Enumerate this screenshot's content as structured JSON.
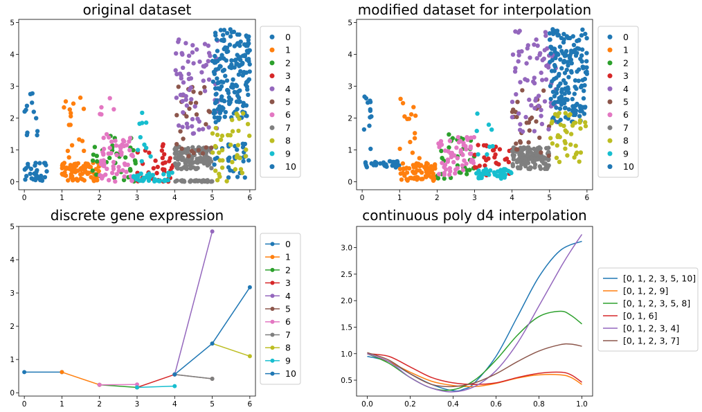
{
  "palette": [
    "#1f77b4",
    "#ff7f0e",
    "#2ca02c",
    "#d62728",
    "#9467bd",
    "#8c564b",
    "#e377c2",
    "#7f7f7f",
    "#bcbd22",
    "#17becf",
    "#1f77b4"
  ],
  "chart_data": [
    {
      "type": "scatter",
      "title": "original dataset",
      "xlabel": "",
      "ylabel": "",
      "xlim": [
        -0.15,
        6.15
      ],
      "ylim": [
        -0.25,
        5.1
      ],
      "xticks": [
        "0",
        "1",
        "2",
        "3",
        "4",
        "5",
        "6"
      ],
      "yticks": [
        "0",
        "1",
        "2",
        "3",
        "4",
        "5"
      ],
      "legend": {
        "placement": "right",
        "entries": [
          "0",
          "1",
          "2",
          "3",
          "4",
          "5",
          "6",
          "7",
          "8",
          "9",
          "10"
        ]
      },
      "clusters": [
        {
          "series": 0,
          "xr": [
            0.0,
            0.6
          ],
          "yr": [
            0.0,
            0.6
          ],
          "n": 32
        },
        {
          "series": 0,
          "xr": [
            0.0,
            0.35
          ],
          "yr": [
            1.0,
            2.8
          ],
          "n": 12
        },
        {
          "series": 1,
          "xr": [
            1.0,
            2.0
          ],
          "yr": [
            0.0,
            0.6
          ],
          "n": 80
        },
        {
          "series": 1,
          "xr": [
            1.0,
            1.6
          ],
          "yr": [
            0.6,
            2.9
          ],
          "n": 16
        },
        {
          "series": 2,
          "xr": [
            1.8,
            3.0
          ],
          "yr": [
            0.0,
            1.5
          ],
          "n": 40
        },
        {
          "series": 6,
          "xr": [
            2.0,
            2.9
          ],
          "yr": [
            0.0,
            1.4
          ],
          "n": 60
        },
        {
          "series": 6,
          "xr": [
            2.0,
            2.4
          ],
          "yr": [
            1.4,
            2.8
          ],
          "n": 6
        },
        {
          "series": 3,
          "xr": [
            3.0,
            4.0
          ],
          "yr": [
            0.0,
            1.2
          ],
          "n": 35
        },
        {
          "series": 9,
          "xr": [
            2.9,
            4.0
          ],
          "yr": [
            0.0,
            0.3
          ],
          "n": 40
        },
        {
          "series": 9,
          "xr": [
            3.0,
            3.5
          ],
          "yr": [
            0.6,
            2.2
          ],
          "n": 10
        },
        {
          "series": 7,
          "xr": [
            4.0,
            5.0
          ],
          "yr": [
            0.4,
            1.1
          ],
          "n": 120
        },
        {
          "series": 7,
          "xr": [
            4.0,
            5.0
          ],
          "yr": [
            0.0,
            0.05
          ],
          "n": 40
        },
        {
          "series": 5,
          "xr": [
            4.0,
            5.0
          ],
          "yr": [
            0.8,
            3.0
          ],
          "n": 30
        },
        {
          "series": 4,
          "xr": [
            4.0,
            5.2
          ],
          "yr": [
            1.5,
            4.5
          ],
          "n": 70
        },
        {
          "series": 10,
          "xr": [
            5.0,
            6.0
          ],
          "yr": [
            1.8,
            4.8
          ],
          "n": 180
        },
        {
          "series": 0,
          "xr": [
            5.0,
            6.0
          ],
          "yr": [
            0.0,
            1.2
          ],
          "n": 30
        },
        {
          "series": 8,
          "xr": [
            5.0,
            6.0
          ],
          "yr": [
            0.0,
            2.2
          ],
          "n": 40
        }
      ]
    },
    {
      "type": "scatter",
      "title": "modified dataset for interpolation",
      "xlabel": "",
      "ylabel": "",
      "xlim": [
        -0.15,
        6.15
      ],
      "ylim": [
        -0.25,
        5.1
      ],
      "xticks": [
        "0",
        "1",
        "2",
        "3",
        "4",
        "5",
        "6"
      ],
      "yticks": [
        "0",
        "1",
        "2",
        "3",
        "4",
        "5"
      ],
      "legend": {
        "placement": "right",
        "entries": [
          "0",
          "1",
          "2",
          "3",
          "4",
          "5",
          "6",
          "7",
          "8",
          "9",
          "10"
        ]
      },
      "clusters": [
        {
          "series": 0,
          "xr": [
            0.0,
            1.0
          ],
          "yr": [
            0.45,
            0.65
          ],
          "n": 30
        },
        {
          "series": 0,
          "xr": [
            0.0,
            0.35
          ],
          "yr": [
            1.0,
            2.8
          ],
          "n": 12
        },
        {
          "series": 1,
          "xr": [
            1.0,
            2.0
          ],
          "yr": [
            0.0,
            0.6
          ],
          "n": 70
        },
        {
          "series": 1,
          "xr": [
            1.0,
            1.6
          ],
          "yr": [
            0.6,
            2.9
          ],
          "n": 14
        },
        {
          "series": 2,
          "xr": [
            2.0,
            3.0
          ],
          "yr": [
            0.1,
            1.5
          ],
          "n": 35
        },
        {
          "series": 6,
          "xr": [
            2.0,
            3.0
          ],
          "yr": [
            0.2,
            1.4
          ],
          "n": 55
        },
        {
          "series": 3,
          "xr": [
            3.0,
            4.0
          ],
          "yr": [
            0.2,
            1.2
          ],
          "n": 30
        },
        {
          "series": 9,
          "xr": [
            3.0,
            4.0
          ],
          "yr": [
            0.1,
            0.4
          ],
          "n": 40
        },
        {
          "series": 9,
          "xr": [
            3.0,
            3.5
          ],
          "yr": [
            0.6,
            2.2
          ],
          "n": 8
        },
        {
          "series": 7,
          "xr": [
            4.0,
            5.0
          ],
          "yr": [
            0.4,
            1.1
          ],
          "n": 120
        },
        {
          "series": 5,
          "xr": [
            4.0,
            5.0
          ],
          "yr": [
            0.8,
            3.0
          ],
          "n": 30
        },
        {
          "series": 4,
          "xr": [
            4.0,
            5.2
          ],
          "yr": [
            1.5,
            4.8
          ],
          "n": 70
        },
        {
          "series": 10,
          "xr": [
            5.0,
            6.0
          ],
          "yr": [
            1.8,
            4.8
          ],
          "n": 180
        },
        {
          "series": 8,
          "xr": [
            5.0,
            6.0
          ],
          "yr": [
            0.6,
            2.2
          ],
          "n": 40
        }
      ]
    },
    {
      "type": "line",
      "title": "discrete gene expression",
      "xlabel": "",
      "ylabel": "",
      "xlim": [
        -0.15,
        6.15
      ],
      "ylim": [
        -0.1,
        5.0
      ],
      "xticks": [
        "0",
        "1",
        "2",
        "3",
        "4",
        "5",
        "6"
      ],
      "yticks": [
        "0",
        "1",
        "2",
        "3",
        "4",
        "5"
      ],
      "legend": {
        "placement": "right",
        "entries": [
          "0",
          "1",
          "2",
          "3",
          "4",
          "5",
          "6",
          "7",
          "8",
          "9",
          "10"
        ]
      },
      "series": [
        {
          "name": "0",
          "x": [
            0,
            1
          ],
          "y": [
            0.62,
            0.62
          ]
        },
        {
          "name": "1",
          "x": [
            1,
            2
          ],
          "y": [
            0.62,
            0.24
          ]
        },
        {
          "name": "2",
          "x": [
            2,
            3
          ],
          "y": [
            0.24,
            0.16
          ]
        },
        {
          "name": "3",
          "x": [
            3,
            4
          ],
          "y": [
            0.16,
            0.55
          ]
        },
        {
          "name": "4",
          "x": [
            4,
            5
          ],
          "y": [
            0.55,
            4.85
          ]
        },
        {
          "name": "5",
          "x": [
            4,
            5
          ],
          "y": [
            0.55,
            0.42
          ]
        },
        {
          "name": "6",
          "x": [
            2,
            3
          ],
          "y": [
            0.24,
            0.25
          ]
        },
        {
          "name": "7",
          "x": [
            4,
            5
          ],
          "y": [
            0.55,
            0.42
          ]
        },
        {
          "name": "8",
          "x": [
            5,
            6
          ],
          "y": [
            1.48,
            1.1
          ]
        },
        {
          "name": "9",
          "x": [
            3,
            4
          ],
          "y": [
            0.16,
            0.2
          ]
        },
        {
          "name": "10",
          "x": [
            4,
            5,
            6
          ],
          "y": [
            0.55,
            1.48,
            3.17
          ]
        }
      ]
    },
    {
      "type": "line",
      "title": "continuous poly d4 interpolation",
      "xlabel": "",
      "ylabel": "",
      "xlim": [
        -0.05,
        1.05
      ],
      "ylim": [
        0.2,
        3.4
      ],
      "xticks": [
        "0.0",
        "0.2",
        "0.4",
        "0.6",
        "0.8",
        "1.0"
      ],
      "yticks": [
        "0.5",
        "1.0",
        "1.5",
        "2.0",
        "2.5",
        "3.0"
      ],
      "legend": {
        "placement": "right",
        "entries": [
          "[0, 1, 2, 3, 5, 10]",
          "[0, 1, 2, 9]",
          "[0, 1, 2, 3, 5, 8]",
          "[0, 1, 6]",
          "[0, 1, 2, 3, 4]",
          "[0, 1, 2, 3, 7]"
        ]
      },
      "series": [
        {
          "name": "[0, 1, 2, 3, 5, 10]",
          "x": [
            0,
            0.1,
            0.2,
            0.3,
            0.4,
            0.45,
            0.5,
            0.6,
            0.7,
            0.8,
            0.9,
            1.0
          ],
          "y": [
            0.95,
            0.85,
            0.62,
            0.42,
            0.3,
            0.33,
            0.45,
            0.95,
            1.7,
            2.45,
            2.95,
            3.12
          ]
        },
        {
          "name": "[0, 1, 2, 9]",
          "x": [
            0,
            0.1,
            0.2,
            0.3,
            0.4,
            0.5,
            0.6,
            0.7,
            0.8,
            0.9,
            0.95,
            1.0
          ],
          "y": [
            1.0,
            0.85,
            0.65,
            0.48,
            0.4,
            0.38,
            0.44,
            0.54,
            0.6,
            0.6,
            0.55,
            0.42
          ]
        },
        {
          "name": "[0, 1, 2, 3, 5, 8]",
          "x": [
            0,
            0.1,
            0.2,
            0.3,
            0.4,
            0.5,
            0.6,
            0.7,
            0.8,
            0.9,
            0.95,
            1.0
          ],
          "y": [
            1.0,
            0.82,
            0.55,
            0.35,
            0.32,
            0.5,
            0.88,
            1.35,
            1.7,
            1.8,
            1.72,
            1.56
          ]
        },
        {
          "name": "[0, 1, 6]",
          "x": [
            0,
            0.1,
            0.2,
            0.3,
            0.4,
            0.5,
            0.6,
            0.7,
            0.8,
            0.9,
            0.95,
            1.0
          ],
          "y": [
            1.0,
            0.95,
            0.75,
            0.55,
            0.45,
            0.42,
            0.45,
            0.55,
            0.63,
            0.65,
            0.6,
            0.46
          ]
        },
        {
          "name": "[0, 1, 2, 3, 4]",
          "x": [
            0,
            0.1,
            0.2,
            0.3,
            0.4,
            0.5,
            0.6,
            0.7,
            0.8,
            0.9,
            0.95,
            1.0
          ],
          "y": [
            1.0,
            0.85,
            0.55,
            0.35,
            0.28,
            0.38,
            0.68,
            1.2,
            1.9,
            2.62,
            2.95,
            3.25
          ]
        },
        {
          "name": "[0, 1, 2, 3, 7]",
          "x": [
            0,
            0.1,
            0.2,
            0.3,
            0.4,
            0.5,
            0.6,
            0.7,
            0.8,
            0.9,
            0.95,
            1.0
          ],
          "y": [
            1.02,
            0.88,
            0.62,
            0.42,
            0.38,
            0.45,
            0.62,
            0.85,
            1.05,
            1.17,
            1.18,
            1.14
          ]
        }
      ]
    }
  ]
}
